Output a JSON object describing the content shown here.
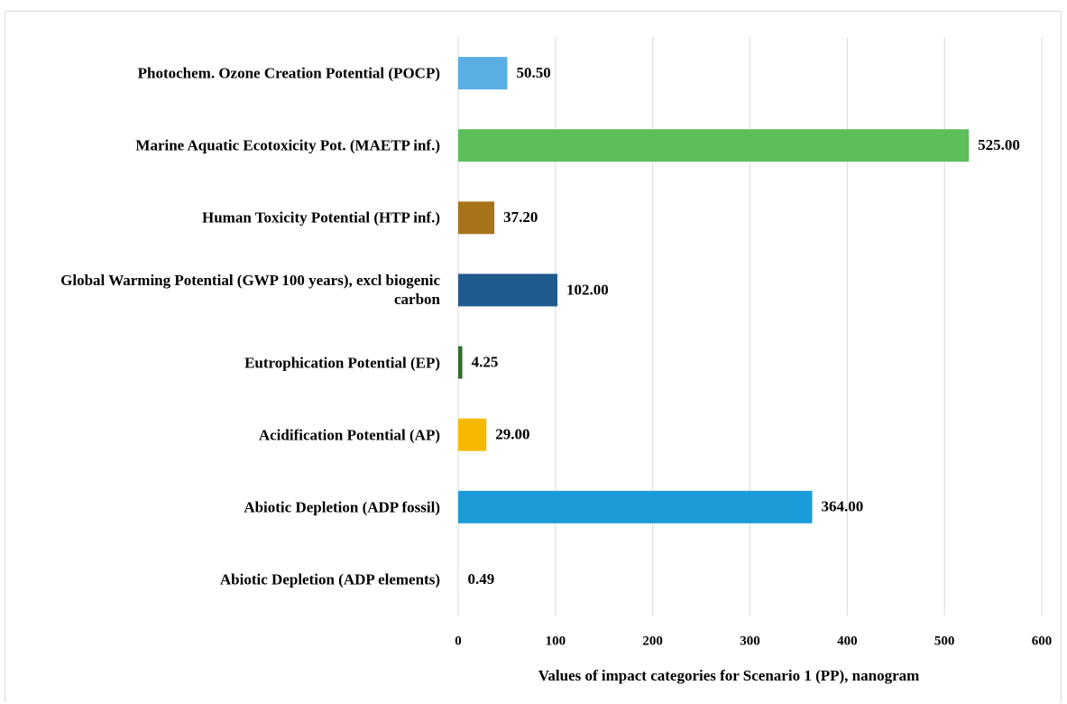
{
  "chart_data": {
    "type": "bar",
    "orientation": "horizontal",
    "x_label": "Values of impact categories for Scenario 1 (PP), nanogram",
    "categories": [
      "Photochem. Ozone Creation Potential (POCP)",
      "Marine Aquatic Ecotoxicity Pot. (MAETP inf.)",
      "Human Toxicity Potential (HTP inf.)",
      "Global Warming Potential (GWP 100 years), excl biogenic carbon",
      "Eutrophication Potential (EP)",
      "Acidification Potential (AP)",
      "Abiotic Depletion (ADP fossil)",
      "Abiotic Depletion (ADP elements)"
    ],
    "values": [
      50.5,
      525,
      37.2,
      102,
      4.25,
      29,
      364,
      0.49
    ],
    "value_labels": [
      "50.50",
      "525.00",
      "37.20",
      "102.00",
      "4.25",
      "29.00",
      "364.00",
      "0.49"
    ],
    "colors": [
      "#5aaee3",
      "#5cbf5a",
      "#a8741a",
      "#1f5b8e",
      "#2f6e2b",
      "#f7b900",
      "#1b9bd8",
      "#e6e6e6"
    ],
    "xlim": [
      0,
      600
    ],
    "xticks": [
      0,
      100,
      200,
      300,
      400,
      500,
      600
    ],
    "grid": true
  }
}
